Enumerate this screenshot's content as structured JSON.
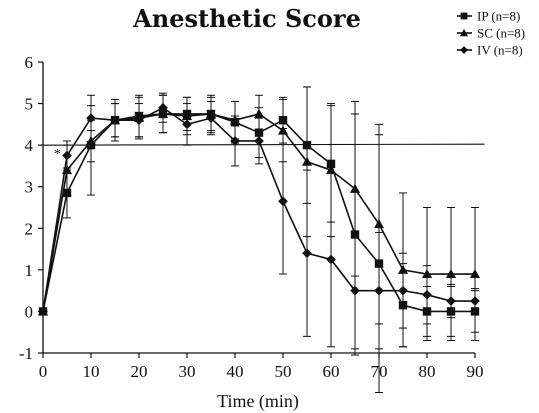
{
  "chart_data": {
    "type": "line",
    "title": "Anesthetic Score",
    "xlabel": "Time (min)",
    "ylabel": "",
    "xlim": [
      0,
      90
    ],
    "ylim": [
      -1,
      6
    ],
    "x_ticks": [
      0,
      10,
      20,
      30,
      40,
      50,
      60,
      70,
      80,
      90
    ],
    "y_ticks": [
      6,
      5,
      4,
      3,
      2,
      1,
      0,
      -1
    ],
    "grid": false,
    "legend_position": "top-right",
    "x": [
      0,
      5,
      10,
      15,
      20,
      25,
      30,
      35,
      40,
      45,
      50,
      55,
      60,
      65,
      70,
      75,
      80,
      85,
      90
    ],
    "reference_line": 4,
    "annotations": [
      {
        "text": "*",
        "x": 3
      }
    ],
    "series": [
      {
        "name": "IP (n=8)",
        "marker": "square",
        "values": [
          0,
          2.85,
          4.0,
          4.6,
          4.7,
          4.75,
          4.75,
          4.75,
          4.55,
          4.3,
          4.6,
          4.0,
          3.55,
          1.85,
          1.15,
          0.15,
          0.0,
          0.0,
          0.0
        ],
        "error": [
          0,
          0.6,
          1.2,
          0.5,
          0.5,
          0.45,
          0.4,
          0.4,
          0.5,
          0.6,
          0.55,
          1.4,
          1.4,
          2.9,
          3.1,
          1.0,
          0.6,
          0.6,
          0.5
        ]
      },
      {
        "name": "SC (n=8)",
        "marker": "triangle",
        "values": [
          0,
          3.4,
          4.1,
          4.6,
          4.65,
          4.75,
          4.7,
          4.75,
          4.6,
          4.75,
          4.35,
          3.6,
          3.4,
          2.95,
          2.1,
          1.0,
          0.9,
          0.9,
          0.9
        ],
        "error": [
          0,
          0.6,
          0.5,
          0.4,
          0.5,
          0.45,
          0.45,
          0.45,
          0.45,
          0.45,
          0.75,
          1.8,
          1.6,
          2.1,
          2.4,
          1.85,
          1.6,
          1.6,
          1.6
        ]
      },
      {
        "name": "IV (n=8)",
        "marker": "diamond",
        "values": [
          0,
          3.75,
          4.65,
          4.6,
          4.6,
          4.9,
          4.5,
          4.65,
          4.1,
          4.1,
          2.65,
          1.4,
          1.25,
          0.5,
          0.5,
          0.5,
          0.4,
          0.25,
          0.25
        ],
        "error": [
          0,
          0.35,
          0.3,
          0.4,
          0.4,
          0.35,
          0.5,
          0.4,
          0.6,
          0.55,
          1.75,
          2.0,
          2.1,
          1.4,
          1.4,
          0.9,
          0.7,
          0.4,
          0.3
        ]
      }
    ]
  }
}
